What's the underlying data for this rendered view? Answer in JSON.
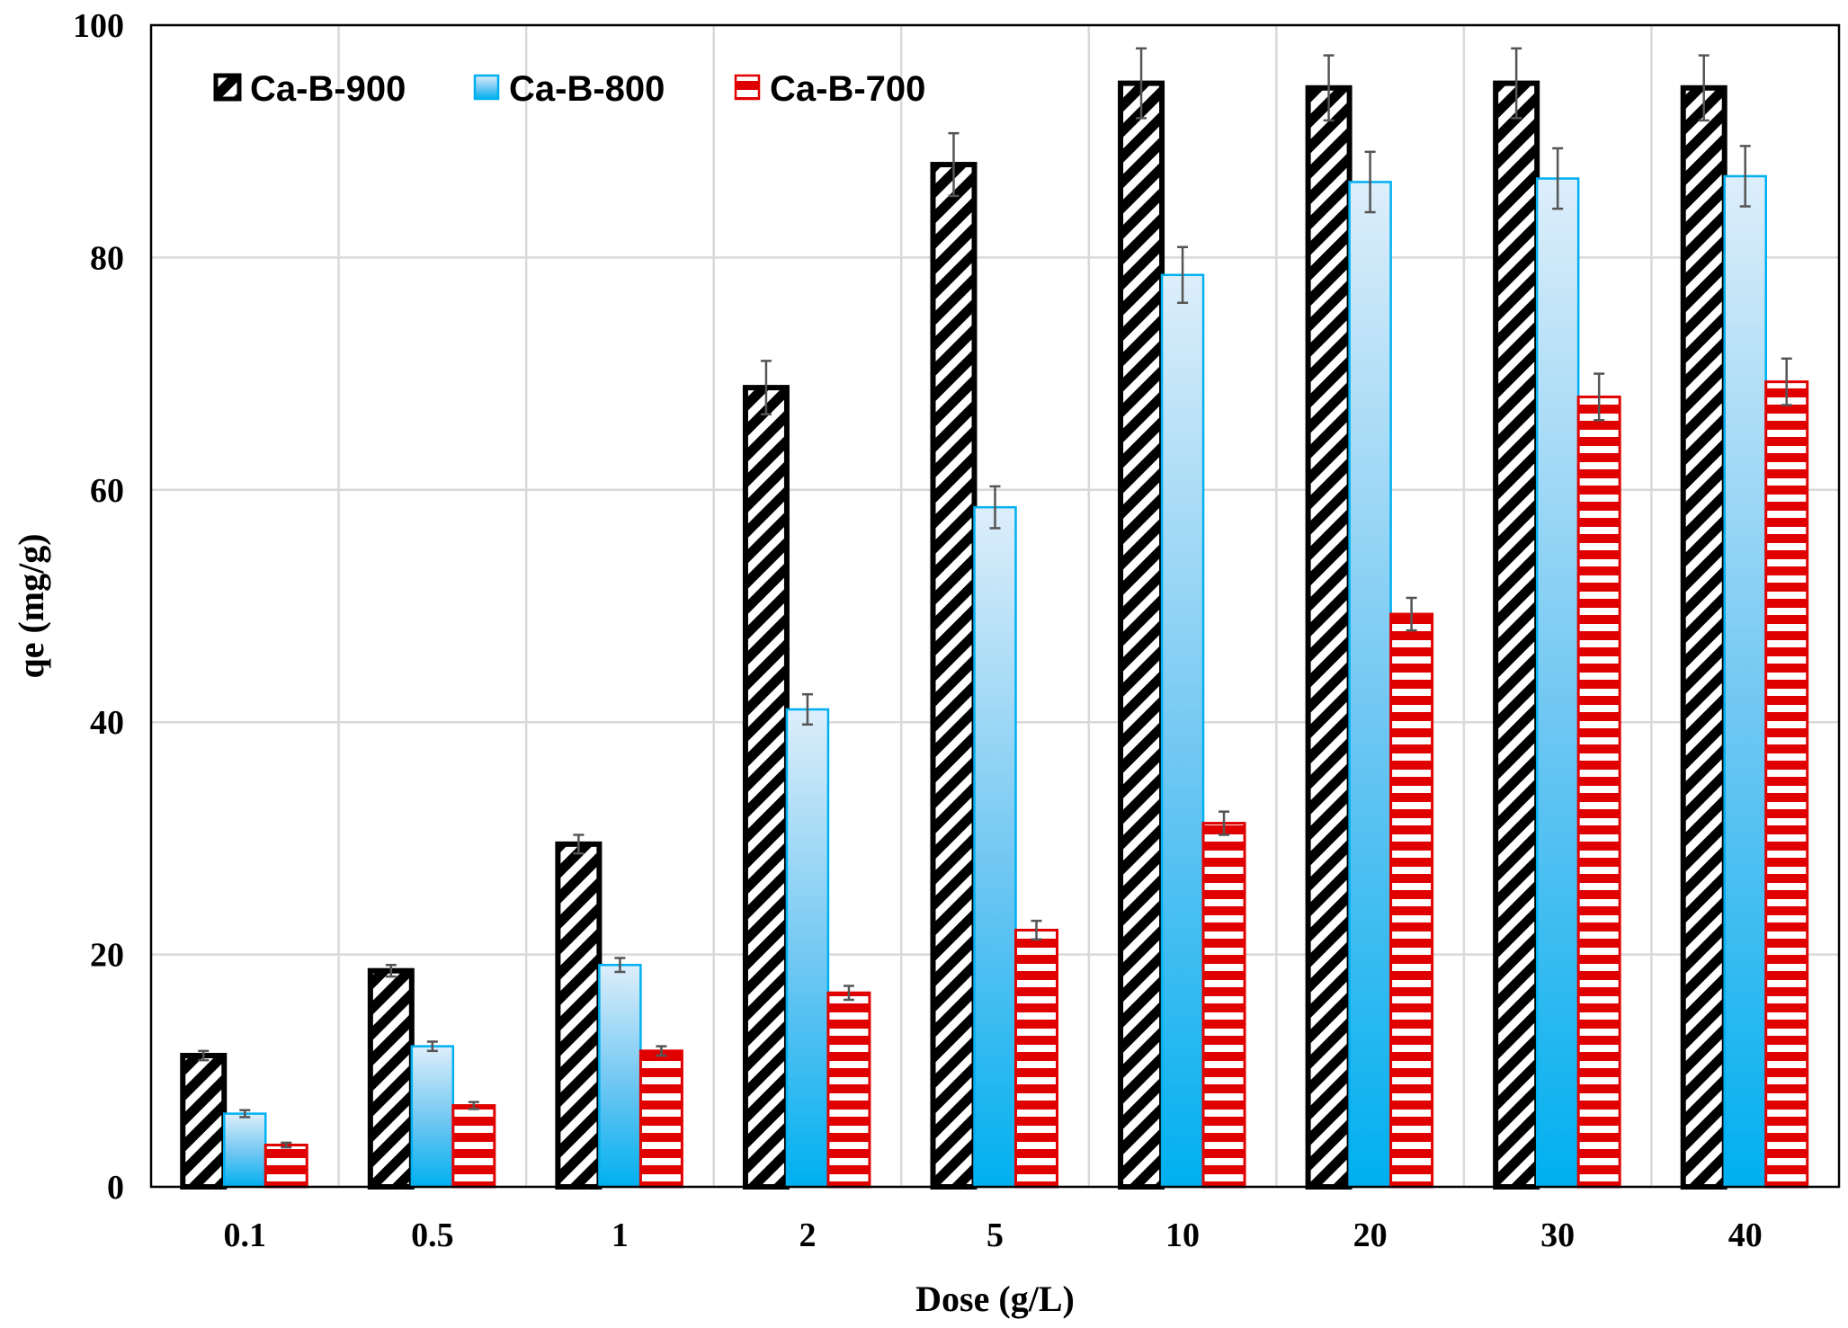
{
  "chart_data": {
    "type": "bar",
    "title": "",
    "xlabel": "Dose (g/L)",
    "ylabel": "qe (mg/g)",
    "ylim": [
      0,
      100
    ],
    "yticks": [
      "0",
      "20",
      "40",
      "60",
      "80",
      "100"
    ],
    "grid": "on",
    "legend_position": "top-left",
    "categories": [
      "0.1",
      "0.5",
      "1",
      "2",
      "5",
      "10",
      "20",
      "30",
      "40"
    ],
    "series": [
      {
        "name": "Ca-B-900",
        "values": [
          11.3,
          18.6,
          29.5,
          68.8,
          88.0,
          95.0,
          94.6,
          95.0,
          94.6
        ],
        "errors": [
          0.4,
          0.5,
          0.8,
          2.3,
          2.7,
          3.0,
          2.8,
          3.0,
          2.8
        ],
        "color": "#000000",
        "pattern": "diagonal"
      },
      {
        "name": "Ca-B-800",
        "values": [
          6.3,
          12.1,
          19.1,
          41.1,
          58.5,
          78.5,
          86.5,
          86.8,
          87.0
        ],
        "errors": [
          0.3,
          0.4,
          0.6,
          1.3,
          1.8,
          2.4,
          2.6,
          2.6,
          2.6
        ],
        "color": "#00b0f0",
        "pattern": "gradient"
      },
      {
        "name": "Ca-B-700",
        "values": [
          3.6,
          7.0,
          11.7,
          16.7,
          22.1,
          31.3,
          49.3,
          68.0,
          69.3
        ],
        "errors": [
          0.2,
          0.3,
          0.4,
          0.6,
          0.8,
          1.0,
          1.4,
          2.0,
          2.0
        ],
        "color": "#e00000",
        "pattern": "horizontal"
      }
    ]
  }
}
